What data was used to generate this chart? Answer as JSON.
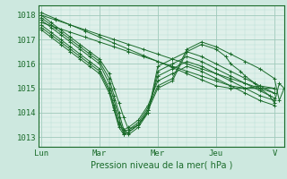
{
  "background_color": "#cde8df",
  "plot_bg_color": "#dff0ea",
  "grid_major_color": "#9fc9bb",
  "grid_minor_color": "#b8ddd4",
  "line_color": "#1a6b2a",
  "xlabel": "Pression niveau de la mer( hPa )",
  "xtick_labels": [
    "Lun",
    "Mar",
    "Mer",
    "Jeu",
    "V"
  ],
  "xtick_positions": [
    0,
    24,
    48,
    72,
    96
  ],
  "ylim": [
    1012.6,
    1018.4
  ],
  "xlim": [
    -1,
    100
  ],
  "series": [
    {
      "x": [
        0,
        6,
        12,
        18,
        24,
        30,
        36,
        42,
        48,
        54,
        60,
        66,
        72,
        78,
        84,
        90,
        96
      ],
      "y": [
        1018.0,
        1017.8,
        1017.6,
        1017.4,
        1017.2,
        1017.0,
        1016.8,
        1016.6,
        1016.4,
        1016.2,
        1016.0,
        1015.8,
        1015.6,
        1015.4,
        1015.2,
        1015.0,
        1014.8
      ]
    },
    {
      "x": [
        0,
        6,
        12,
        18,
        24,
        30,
        36,
        42,
        48,
        54,
        60,
        66,
        72,
        78,
        84,
        90,
        96
      ],
      "y": [
        1018.1,
        1017.85,
        1017.6,
        1017.35,
        1017.1,
        1016.85,
        1016.6,
        1016.35,
        1016.1,
        1015.85,
        1015.6,
        1015.35,
        1015.1,
        1015.0,
        1015.0,
        1015.1,
        1015.0
      ]
    },
    {
      "x": [
        0,
        6,
        12,
        18,
        24,
        30,
        36,
        42,
        48,
        54,
        60,
        66,
        72,
        78,
        84,
        90,
        96
      ],
      "y": [
        1017.7,
        1017.5,
        1017.3,
        1017.1,
        1016.9,
        1016.7,
        1016.5,
        1016.3,
        1016.1,
        1015.9,
        1015.7,
        1015.5,
        1015.3,
        1015.1,
        1015.0,
        1015.0,
        1015.0
      ]
    },
    {
      "x": [
        0,
        4,
        8,
        12,
        16,
        20,
        24,
        28,
        30,
        32,
        34,
        36,
        40,
        44,
        48,
        54,
        60,
        66,
        72,
        78,
        84,
        90,
        96
      ],
      "y": [
        1018.0,
        1017.7,
        1017.4,
        1017.1,
        1016.8,
        1016.5,
        1016.2,
        1015.6,
        1015.0,
        1014.4,
        1013.8,
        1013.3,
        1013.5,
        1014.0,
        1015.9,
        1016.2,
        1016.5,
        1016.3,
        1016.0,
        1015.7,
        1015.4,
        1015.1,
        1014.8
      ]
    },
    {
      "x": [
        0,
        4,
        8,
        12,
        16,
        20,
        24,
        28,
        30,
        32,
        34,
        36,
        40,
        44,
        48,
        54,
        60,
        66,
        72,
        78,
        84,
        90,
        96
      ],
      "y": [
        1017.9,
        1017.6,
        1017.3,
        1017.0,
        1016.7,
        1016.4,
        1016.1,
        1015.4,
        1014.7,
        1014.0,
        1013.3,
        1013.1,
        1013.4,
        1014.0,
        1015.7,
        1016.0,
        1016.3,
        1016.1,
        1015.8,
        1015.5,
        1015.2,
        1014.9,
        1014.6
      ]
    },
    {
      "x": [
        0,
        4,
        8,
        12,
        16,
        20,
        24,
        28,
        30,
        32,
        34,
        36,
        40,
        44,
        48,
        54,
        60,
        66,
        72,
        78,
        84,
        90,
        96
      ],
      "y": [
        1017.8,
        1017.5,
        1017.2,
        1016.9,
        1016.6,
        1016.3,
        1016.0,
        1015.2,
        1014.5,
        1013.8,
        1013.1,
        1013.2,
        1013.5,
        1014.1,
        1015.5,
        1015.8,
        1016.1,
        1015.9,
        1015.6,
        1015.3,
        1015.0,
        1014.7,
        1014.5
      ]
    },
    {
      "x": [
        0,
        4,
        8,
        12,
        16,
        20,
        24,
        28,
        30,
        32,
        34,
        36,
        40,
        44,
        48,
        54,
        60,
        66,
        72,
        78,
        84,
        90,
        96
      ],
      "y": [
        1017.6,
        1017.3,
        1017.0,
        1016.7,
        1016.4,
        1016.1,
        1015.8,
        1015.0,
        1014.3,
        1013.6,
        1013.3,
        1013.4,
        1013.7,
        1014.3,
        1015.3,
        1015.6,
        1015.9,
        1015.7,
        1015.4,
        1015.1,
        1014.8,
        1014.5,
        1014.3
      ]
    },
    {
      "x": [
        0,
        4,
        8,
        12,
        16,
        20,
        24,
        28,
        30,
        32,
        34,
        36,
        40,
        44,
        48,
        54,
        60,
        66,
        72,
        78,
        84,
        90,
        96,
        98,
        100
      ],
      "y": [
        1017.5,
        1017.2,
        1016.9,
        1016.6,
        1016.3,
        1016.0,
        1015.7,
        1014.9,
        1014.2,
        1013.5,
        1013.2,
        1013.3,
        1013.6,
        1014.2,
        1015.1,
        1015.4,
        1016.6,
        1016.9,
        1016.7,
        1016.4,
        1016.1,
        1015.8,
        1015.4,
        1014.5,
        1015.0
      ]
    },
    {
      "x": [
        0,
        4,
        8,
        12,
        16,
        20,
        24,
        28,
        30,
        32,
        34,
        36,
        40,
        44,
        48,
        54,
        60,
        66,
        72,
        76,
        78,
        82,
        84,
        88,
        90,
        94,
        96,
        98,
        100
      ],
      "y": [
        1017.4,
        1017.1,
        1016.8,
        1016.5,
        1016.2,
        1015.9,
        1015.6,
        1014.8,
        1014.1,
        1013.4,
        1013.1,
        1013.2,
        1013.5,
        1014.1,
        1015.0,
        1015.3,
        1016.5,
        1016.8,
        1016.6,
        1016.3,
        1016.0,
        1015.7,
        1015.5,
        1015.2,
        1015.0,
        1014.7,
        1014.4,
        1015.2,
        1015.0
      ]
    }
  ]
}
